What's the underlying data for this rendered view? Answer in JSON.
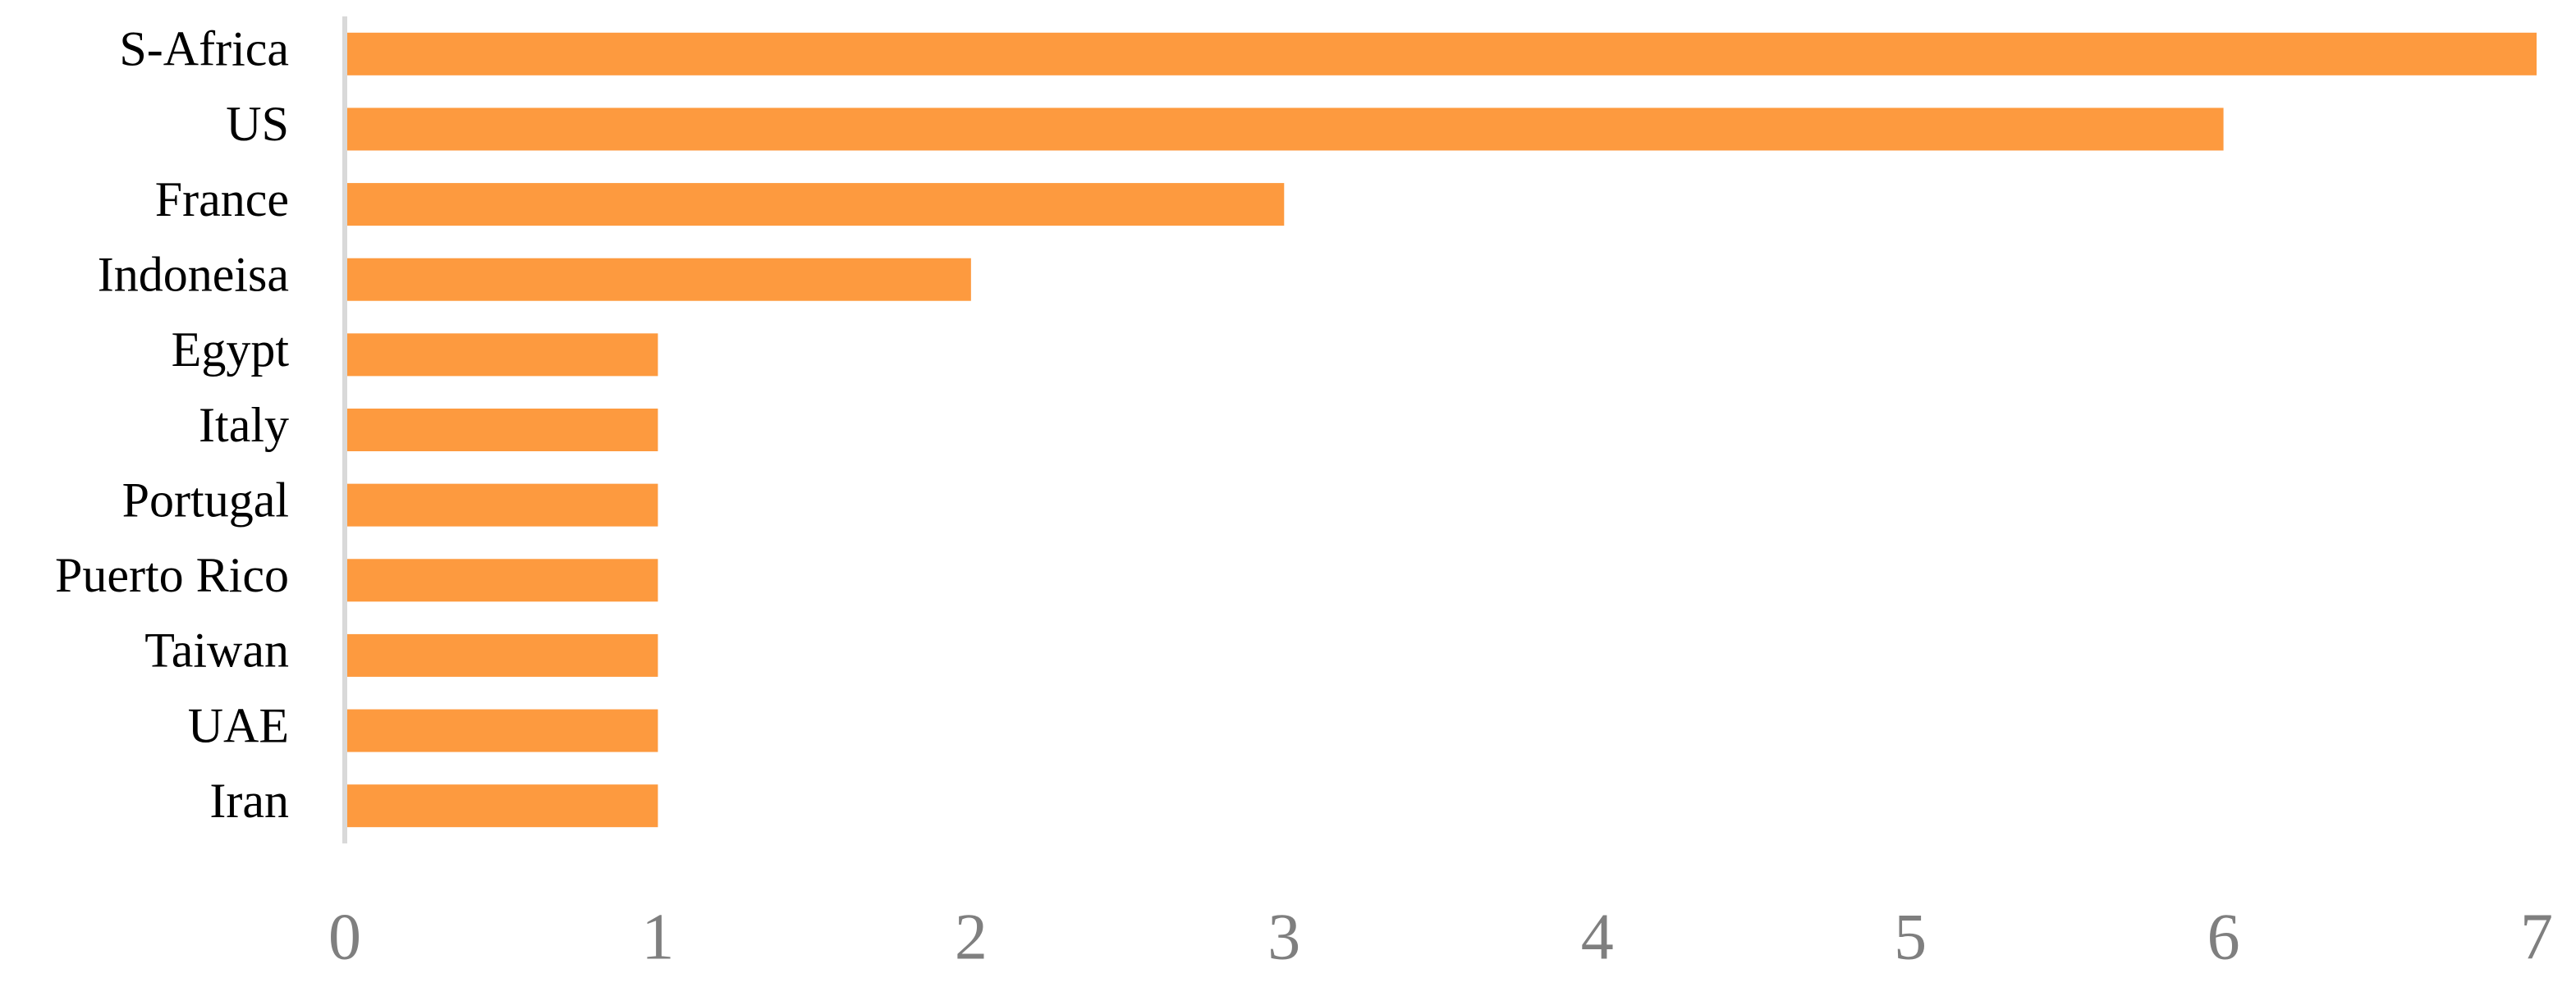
{
  "chart_data": {
    "type": "bar",
    "orientation": "horizontal",
    "categories": [
      "S-Africa",
      "US",
      "France",
      "Indoneisa",
      "Egypt",
      "Italy",
      "Portugal",
      "Puerto Rico",
      "Taiwan",
      "UAE",
      "Iran"
    ],
    "values": [
      7,
      6,
      3,
      2,
      1,
      1,
      1,
      1,
      1,
      1,
      1
    ],
    "color": "#fd9a3f",
    "xlim": [
      0,
      7
    ],
    "xticks": [
      0,
      1,
      2,
      3,
      4,
      5,
      6,
      7
    ],
    "grid": false
  }
}
